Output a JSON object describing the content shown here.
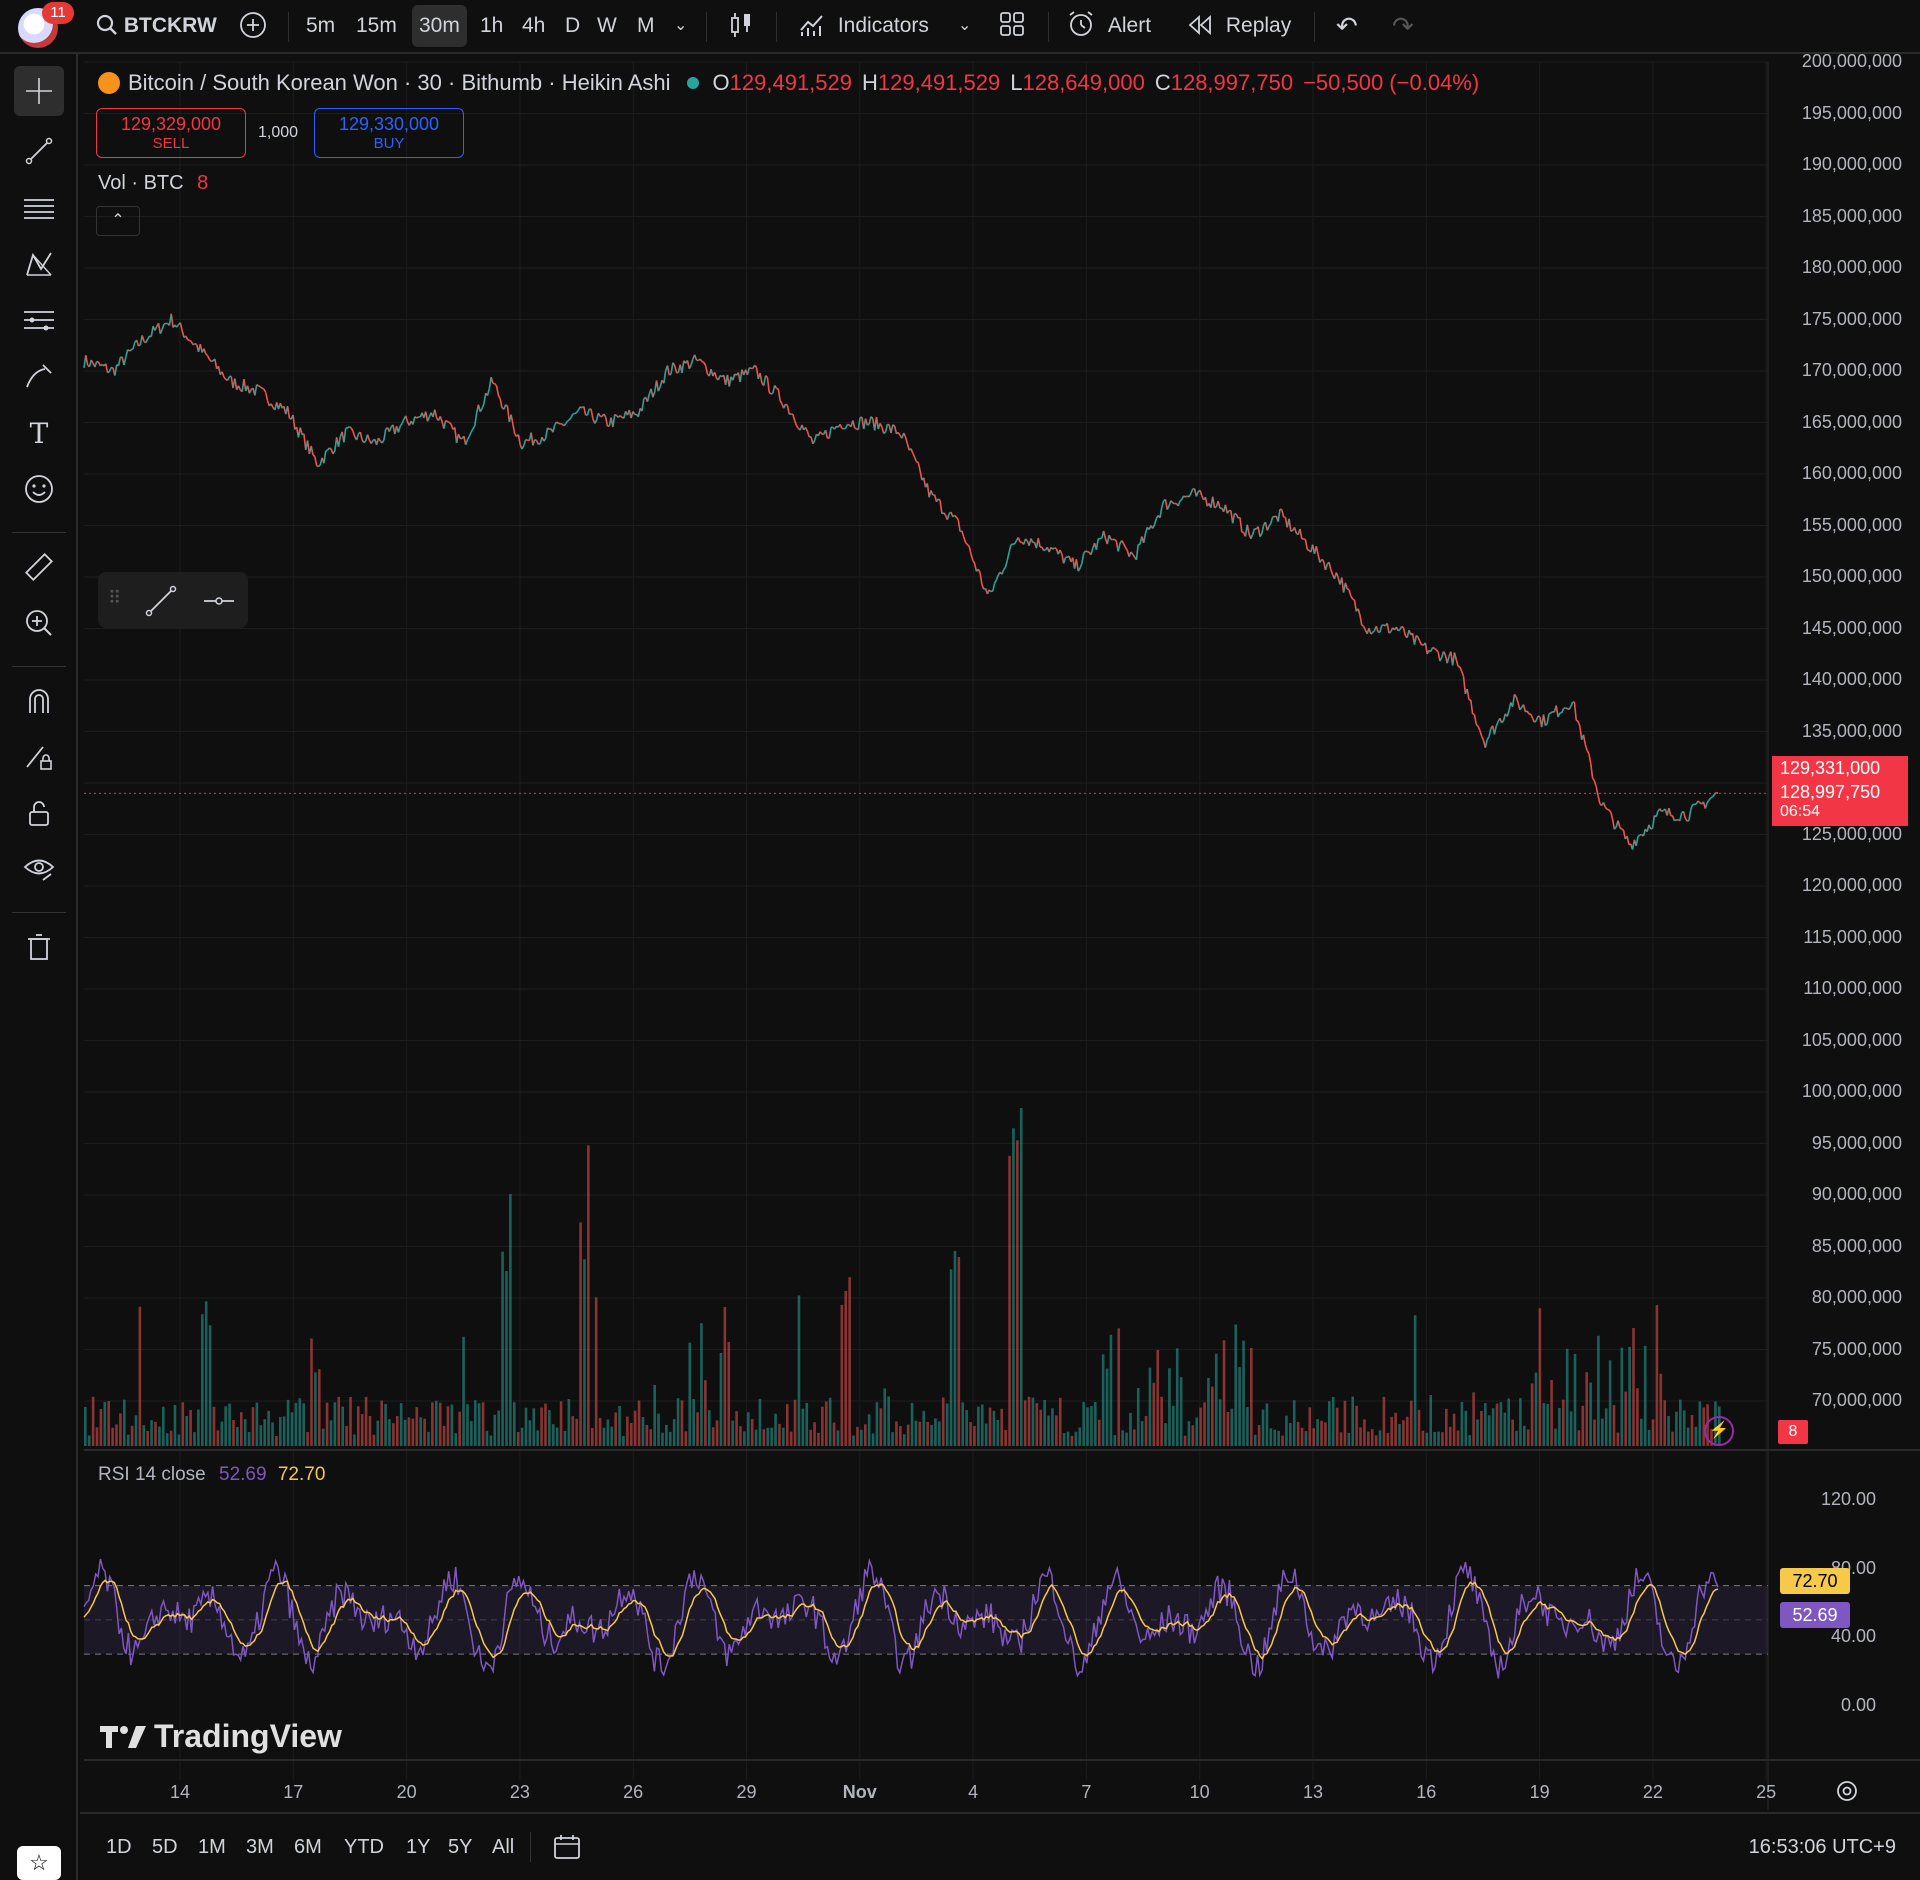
{
  "topbar": {
    "notification_count": "11",
    "symbol": "BTCKRW",
    "timeframes": [
      "5m",
      "15m",
      "30m",
      "1h",
      "4h",
      "D",
      "W",
      "M"
    ],
    "active_timeframe": "30m",
    "indicators_label": "Indicators",
    "alert_label": "Alert",
    "replay_label": "Replay"
  },
  "legend": {
    "title": "Bitcoin / South Korean Won · 30 · Bithumb · Heikin Ashi",
    "open_label": "O",
    "open": "129,491,529",
    "high_label": "H",
    "high": "129,491,529",
    "low_label": "L",
    "low": "128,649,000",
    "close_label": "C",
    "close": "128,997,750",
    "change": "−50,500 (−0.04%)"
  },
  "trade": {
    "sell_price": "129,329,000",
    "sell_label": "SELL",
    "spread": "1,000",
    "buy_price": "129,330,000",
    "buy_label": "BUY"
  },
  "volume_legend": {
    "label": "Vol · BTC",
    "value": "8"
  },
  "price_axis": {
    "ticks": [
      "200,000,000",
      "195,000,000",
      "190,000,000",
      "185,000,000",
      "180,000,000",
      "175,000,000",
      "170,000,000",
      "165,000,000",
      "160,000,000",
      "155,000,000",
      "150,000,000",
      "145,000,000",
      "140,000,000",
      "135,000,000",
      "130,000,000",
      "125,000,000",
      "120,000,000",
      "115,000,000",
      "110,000,000",
      "105,000,000",
      "100,000,000",
      "95,000,000",
      "90,000,000",
      "85,000,000",
      "80,000,000",
      "75,000,000",
      "70,000,000"
    ],
    "ask_tag": "129,331,000",
    "last_tag": "128,997,750",
    "countdown": "06:54",
    "volume_tag": "8"
  },
  "rsi": {
    "label": "RSI 14 close",
    "value1": "52.69",
    "value2": "72.70",
    "ticks": [
      "120.00",
      "80.00",
      "40.00",
      "0.00"
    ]
  },
  "time_axis": {
    "labels": [
      "14",
      "17",
      "20",
      "23",
      "26",
      "29",
      "Nov",
      "4",
      "7",
      "10",
      "13",
      "16",
      "19",
      "22",
      "25"
    ]
  },
  "bottombar": {
    "ranges": [
      "1D",
      "5D",
      "1M",
      "3M",
      "6M",
      "YTD",
      "1Y",
      "5Y",
      "All"
    ],
    "clock": "16:53:06 UTC+9"
  },
  "branding": {
    "logo_text": "TradingView"
  },
  "colors": {
    "up": "#26a69a",
    "down": "#ef5350",
    "rsi_line": "#7e57c2",
    "rsi_ma": "#f7c948",
    "accent_blue": "#2962ff"
  },
  "chart_data": {
    "type": "line",
    "series": [
      {
        "values": [
          171000000,
          170000000,
          173000000,
          175000000,
          172000000,
          169000000,
          168000000,
          166000000,
          161000000,
          164000000,
          163000000,
          165000000,
          166000000,
          163000000,
          169000000,
          163000000,
          164000000,
          166000000,
          165000000,
          166000000,
          170000000,
          171000000,
          169000000,
          170000000,
          167000000,
          163000000,
          165000000,
          165000000,
          164000000,
          158000000,
          155000000,
          148000000,
          154000000,
          153000000,
          151000000,
          154000000,
          152000000,
          157000000,
          158000000,
          157000000,
          154000000,
          156000000,
          153000000,
          150000000,
          145000000,
          145000000,
          143000000,
          142000000,
          134000000,
          138000000,
          136000000,
          138000000,
          128000000,
          124000000,
          127000000,
          127000000,
          129000000
        ]
      }
    ],
    "ylim": [
      68000000,
      201000000
    ]
  }
}
